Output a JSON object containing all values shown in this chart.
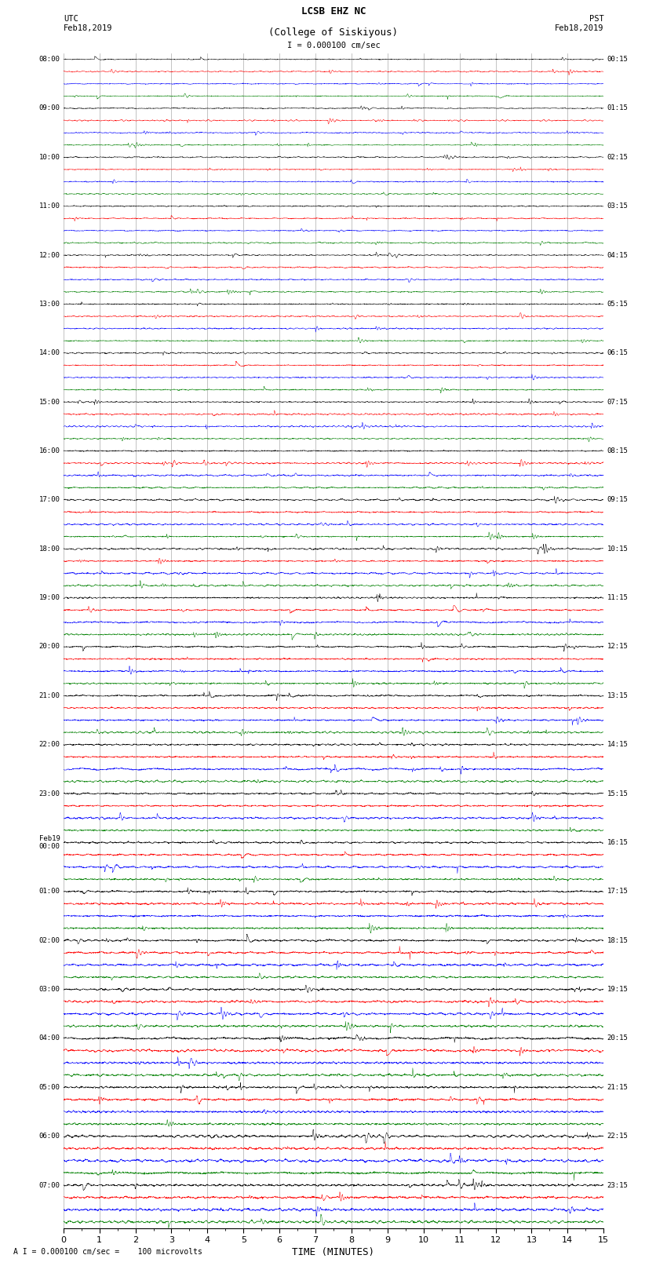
{
  "title_line1": "LCSB EHZ NC",
  "title_line2": "(College of Siskiyous)",
  "scale_text": "I = 0.000100 cm/sec",
  "footer_text": "A I = 0.000100 cm/sec =    100 microvolts",
  "utc_label": "UTC\nFeb18,2019",
  "pst_label": "PST\nFeb18,2019",
  "xlabel": "TIME (MINUTES)",
  "colors": [
    "black",
    "red",
    "blue",
    "green"
  ],
  "n_hours": 24,
  "n_traces_per_hour": 4,
  "n_points": 3000,
  "x_min": 0,
  "x_max": 15,
  "xticks": [
    0,
    1,
    2,
    3,
    4,
    5,
    6,
    7,
    8,
    9,
    10,
    11,
    12,
    13,
    14,
    15
  ],
  "fig_width": 8.5,
  "fig_height": 16.13,
  "dpi": 100,
  "left_labels": [
    [
      "08:00",
      0
    ],
    [
      "09:00",
      4
    ],
    [
      "10:00",
      8
    ],
    [
      "11:00",
      12
    ],
    [
      "12:00",
      16
    ],
    [
      "13:00",
      20
    ],
    [
      "14:00",
      24
    ],
    [
      "15:00",
      28
    ],
    [
      "16:00",
      32
    ],
    [
      "17:00",
      36
    ],
    [
      "18:00",
      40
    ],
    [
      "19:00",
      44
    ],
    [
      "20:00",
      48
    ],
    [
      "21:00",
      52
    ],
    [
      "22:00",
      56
    ],
    [
      "23:00",
      60
    ],
    [
      "Feb19\n00:00",
      64
    ],
    [
      "01:00",
      68
    ],
    [
      "02:00",
      72
    ],
    [
      "03:00",
      76
    ],
    [
      "04:00",
      80
    ],
    [
      "05:00",
      84
    ],
    [
      "06:00",
      88
    ],
    [
      "07:00",
      92
    ]
  ],
  "right_labels": [
    [
      "00:15",
      0
    ],
    [
      "01:15",
      4
    ],
    [
      "02:15",
      8
    ],
    [
      "03:15",
      12
    ],
    [
      "04:15",
      16
    ],
    [
      "05:15",
      20
    ],
    [
      "06:15",
      24
    ],
    [
      "07:15",
      28
    ],
    [
      "08:15",
      32
    ],
    [
      "09:15",
      36
    ],
    [
      "10:15",
      40
    ],
    [
      "11:15",
      44
    ],
    [
      "12:15",
      48
    ],
    [
      "13:15",
      52
    ],
    [
      "14:15",
      56
    ],
    [
      "15:15",
      60
    ],
    [
      "16:15",
      64
    ],
    [
      "17:15",
      68
    ],
    [
      "18:15",
      72
    ],
    [
      "19:15",
      76
    ],
    [
      "20:15",
      80
    ],
    [
      "21:15",
      84
    ],
    [
      "22:15",
      88
    ],
    [
      "23:15",
      92
    ]
  ],
  "seed": 12345
}
